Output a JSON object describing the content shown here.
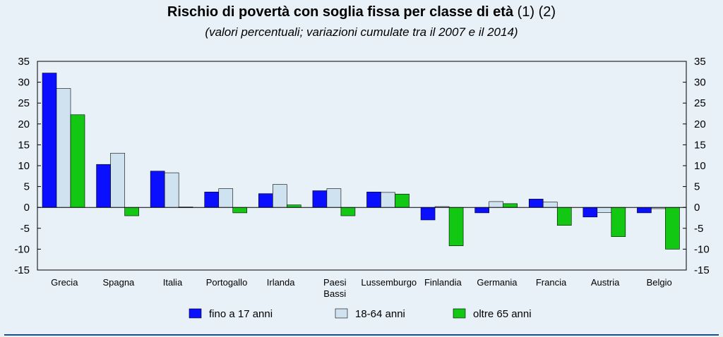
{
  "title": "Rischio di povertà con soglia fissa per classe di età",
  "title_notes": "(1) (2)",
  "subtitle": "(valori percentuali; variazioni cumulate tra il 2007 e il 2014)",
  "chart_data": {
    "type": "bar",
    "categories": [
      [
        "Grecia"
      ],
      [
        "Spagna"
      ],
      [
        "Italia"
      ],
      [
        "Portogallo"
      ],
      [
        "Irlanda"
      ],
      [
        "Paesi",
        "Bassi"
      ],
      [
        "Lussemburgo"
      ],
      [
        "Finlandia"
      ],
      [
        "Germania"
      ],
      [
        "Francia"
      ],
      [
        "Austria"
      ],
      [
        "Belgio"
      ]
    ],
    "series": [
      {
        "name": "fino a 17 anni",
        "color": "#0a10ff",
        "values": [
          32.2,
          10.3,
          8.7,
          3.7,
          3.3,
          4.0,
          3.7,
          -3.0,
          -1.3,
          2.0,
          -2.3,
          -1.3
        ]
      },
      {
        "name": "18-64 anni",
        "color": "#cfe2f0",
        "values": [
          28.5,
          13.0,
          8.3,
          4.5,
          5.5,
          4.5,
          3.6,
          0.2,
          1.4,
          1.3,
          -1.2,
          -0.3
        ]
      },
      {
        "name": "oltre 65 anni",
        "color": "#12c812",
        "values": [
          22.2,
          -2.0,
          0.1,
          -1.3,
          0.6,
          -2.0,
          3.2,
          -9.2,
          0.9,
          -4.3,
          -7.0,
          -10.0
        ]
      }
    ],
    "ylim": [
      -15,
      35
    ],
    "yticks": [
      35,
      30,
      25,
      20,
      15,
      10,
      5,
      0,
      -5,
      -10,
      -15
    ],
    "grid": false,
    "legend_position": "bottom"
  }
}
